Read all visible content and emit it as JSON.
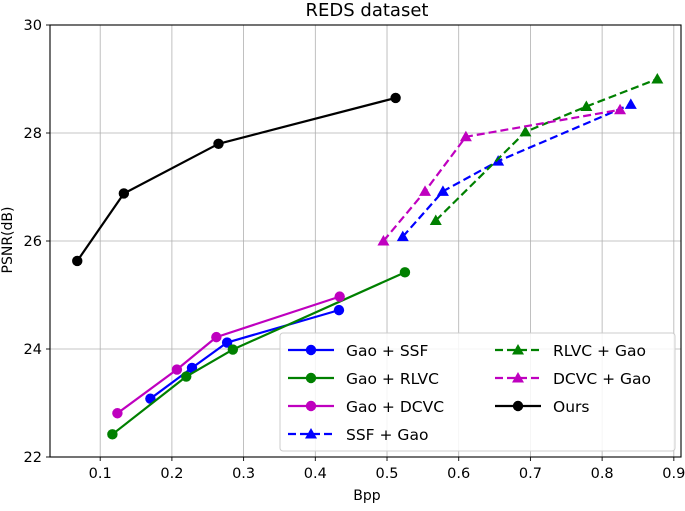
{
  "chart_data": {
    "type": "line",
    "title": "REDS dataset",
    "xlabel": "Bpp",
    "ylabel": "PSNR(dB)",
    "xlim": [
      0.03,
      0.91
    ],
    "ylim": [
      22,
      30
    ],
    "xticks": [
      0.1,
      0.2,
      0.3,
      0.4,
      0.5,
      0.6,
      0.7,
      0.8,
      0.9
    ],
    "xtick_labels": [
      "0.1",
      "0.2",
      "0.3",
      "0.4",
      "0.5",
      "0.6",
      "0.7",
      "0.8",
      "0.9"
    ],
    "yticks": [
      22,
      24,
      26,
      28,
      30
    ],
    "ytick_labels": [
      "22",
      "24",
      "26",
      "28",
      "30"
    ],
    "grid": true,
    "legend_position": "bottom-right",
    "legend_columns": 2,
    "series": [
      {
        "name": "Gao + SSF",
        "color": "#0000ff",
        "linestyle": "solid",
        "marker": "circle",
        "x": [
          0.17,
          0.228,
          0.277,
          0.433
        ],
        "y": [
          23.08,
          23.65,
          24.12,
          24.72
        ]
      },
      {
        "name": "Gao + RLVC",
        "color": "#008000",
        "linestyle": "solid",
        "marker": "circle",
        "x": [
          0.117,
          0.22,
          0.285,
          0.525
        ],
        "y": [
          22.42,
          23.49,
          23.99,
          25.42
        ]
      },
      {
        "name": "Gao + DCVC",
        "color": "#bf00bf",
        "linestyle": "solid",
        "marker": "circle",
        "x": [
          0.124,
          0.207,
          0.262,
          0.434
        ],
        "y": [
          22.81,
          23.62,
          24.22,
          24.97
        ]
      },
      {
        "name": "SSF + Gao",
        "color": "#0000ff",
        "linestyle": "dashed",
        "marker": "triangle",
        "x": [
          0.522,
          0.578,
          0.655,
          0.84
        ],
        "y": [
          26.08,
          26.92,
          27.48,
          28.53
        ]
      },
      {
        "name": "RLVC + Gao",
        "color": "#008000",
        "linestyle": "dashed",
        "marker": "triangle",
        "x": [
          0.568,
          0.693,
          0.778,
          0.877
        ],
        "y": [
          26.38,
          28.02,
          28.49,
          29.0
        ]
      },
      {
        "name": "DCVC + Gao",
        "color": "#bf00bf",
        "linestyle": "dashed",
        "marker": "triangle",
        "x": [
          0.495,
          0.553,
          0.61,
          0.825
        ],
        "y": [
          26.0,
          26.92,
          27.93,
          28.43
        ]
      },
      {
        "name": "Ours",
        "color": "#000000",
        "linestyle": "solid",
        "marker": "circle",
        "x": [
          0.068,
          0.133,
          0.265,
          0.512
        ],
        "y": [
          25.63,
          26.88,
          27.8,
          28.65
        ]
      }
    ]
  }
}
